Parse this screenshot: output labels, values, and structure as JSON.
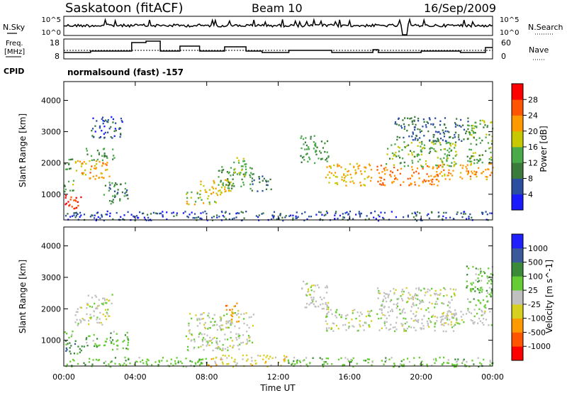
{
  "header": {
    "station": "Saskatoon (fitACF)",
    "beam": "Beam 10",
    "date": "16/Sep/2009"
  },
  "nsky_panel": {
    "left_label": "N.Sky",
    "right_label": "N.Search",
    "left_ticks": [
      "10^5",
      "10^0"
    ],
    "right_ticks": [
      "10^5",
      "10^0"
    ]
  },
  "freq_panel": {
    "left_label_line1": "Freq.",
    "left_label_line2": "[MHz]",
    "right_label": "Nave",
    "left_ticks": [
      "18",
      "8"
    ],
    "right_ticks": [
      "60",
      "0"
    ]
  },
  "cpid": {
    "label": "CPID",
    "value": "normalsound (fast) -157"
  },
  "colors": {
    "power_scale": [
      "#1a1aff",
      "#2a4fa0",
      "#3a7a3a",
      "#4aaa4a",
      "#c8c800",
      "#ff9900",
      "#ff5500",
      "#ff0000"
    ],
    "velocity_scale": [
      "#2020ff",
      "#3a5a9a",
      "#3a8a3a",
      "#66cc33",
      "#c0c0c0",
      "#d8d020",
      "#ff9900",
      "#ff5500",
      "#ff0000"
    ]
  },
  "chart_data": [
    {
      "type": "heatmap",
      "name": "power",
      "ylabel": "Slant Range [km]",
      "ylim": [
        180,
        4600
      ],
      "xlim": [
        0,
        24
      ],
      "x_ticks": [
        "00:00",
        "04:00",
        "08:00",
        "12:00",
        "16:00",
        "20:00",
        "00:00"
      ],
      "y_ticks": [
        1000,
        2000,
        3000,
        4000
      ],
      "colorbar_label": "Power [dB]",
      "colorbar_ticks": [
        "4",
        "8",
        "12",
        "16",
        "20",
        "24",
        "28"
      ],
      "colorbar_range": [
        0,
        32
      ],
      "regions": [
        {
          "t0": 0.0,
          "t1": 1.0,
          "r0": 550,
          "r1": 1050,
          "level": 28
        },
        {
          "t0": 0.0,
          "t1": 0.6,
          "r0": 1100,
          "r1": 1500,
          "level": 14
        },
        {
          "t0": 0.0,
          "t1": 0.5,
          "r0": 1600,
          "r1": 2150,
          "level": 12
        },
        {
          "t0": 0.6,
          "t1": 2.6,
          "r0": 1500,
          "r1": 2100,
          "level": 22
        },
        {
          "t0": 1.2,
          "t1": 2.8,
          "r0": 2100,
          "r1": 2500,
          "level": 12
        },
        {
          "t0": 2.2,
          "t1": 3.6,
          "r0": 700,
          "r1": 1400,
          "level": 10
        },
        {
          "t0": 1.5,
          "t1": 3.3,
          "r0": 2800,
          "r1": 3500,
          "level": 6
        },
        {
          "t0": 6.8,
          "t1": 8.6,
          "r0": 700,
          "r1": 1100,
          "level": 18
        },
        {
          "t0": 7.6,
          "t1": 9.4,
          "r0": 1000,
          "r1": 1500,
          "level": 20
        },
        {
          "t0": 8.6,
          "t1": 10.6,
          "r0": 1200,
          "r1": 1900,
          "level": 12
        },
        {
          "t0": 9.4,
          "t1": 10.2,
          "r0": 1600,
          "r1": 2200,
          "level": 16
        },
        {
          "t0": 10.5,
          "t1": 11.6,
          "r0": 1100,
          "r1": 1600,
          "level": 8
        },
        {
          "t0": 13.2,
          "t1": 14.8,
          "r0": 2000,
          "r1": 2900,
          "level": 12
        },
        {
          "t0": 14.6,
          "t1": 17.2,
          "r0": 1300,
          "r1": 2000,
          "level": 20
        },
        {
          "t0": 17.5,
          "t1": 21.0,
          "r0": 1300,
          "r1": 1950,
          "level": 24
        },
        {
          "t0": 18.0,
          "t1": 22.0,
          "r0": 1900,
          "r1": 2700,
          "level": 14
        },
        {
          "t0": 21.0,
          "t1": 24.0,
          "r0": 1500,
          "r1": 2000,
          "level": 22
        },
        {
          "t0": 22.5,
          "t1": 24.0,
          "r0": 2000,
          "r1": 3400,
          "level": 14
        },
        {
          "t0": 18.5,
          "t1": 22.6,
          "r0": 2700,
          "r1": 3500,
          "level": 8
        },
        {
          "t0": 0.0,
          "t1": 24.0,
          "r0": 180,
          "r1": 480,
          "level": 6
        }
      ]
    },
    {
      "type": "heatmap",
      "name": "velocity",
      "ylabel": "Slant Range [km]",
      "xlabel": "Time UT",
      "ylim": [
        180,
        4600
      ],
      "xlim": [
        0,
        24
      ],
      "x_ticks": [
        "00:00",
        "04:00",
        "08:00",
        "12:00",
        "16:00",
        "20:00",
        "00:00"
      ],
      "y_ticks": [
        1000,
        2000,
        3000,
        4000
      ],
      "colorbar_label": "Velocity [m s^-1]",
      "colorbar_ticks": [
        "1000",
        "500",
        "100",
        "25",
        "-25",
        "-100",
        "-500",
        "-1000"
      ],
      "regions": [
        {
          "t0": 0.0,
          "t1": 1.0,
          "r0": 550,
          "r1": 1050,
          "level": 2
        },
        {
          "t0": 0.0,
          "t1": 0.5,
          "r0": 1100,
          "r1": 1400,
          "level": 3
        },
        {
          "t0": 0.6,
          "t1": 2.6,
          "r0": 1500,
          "r1": 2100,
          "level": 4
        },
        {
          "t0": 1.2,
          "t1": 2.8,
          "r0": 2100,
          "r1": 2500,
          "level": 4
        },
        {
          "t0": 1.0,
          "t1": 2.0,
          "r0": 800,
          "r1": 1200,
          "level": 3
        },
        {
          "t0": 2.2,
          "t1": 3.6,
          "r0": 700,
          "r1": 1300,
          "level": 3
        },
        {
          "t0": 6.8,
          "t1": 10.6,
          "r0": 700,
          "r1": 1900,
          "level": 4
        },
        {
          "t0": 9.0,
          "t1": 9.8,
          "r0": 1600,
          "r1": 2200,
          "level": 6
        },
        {
          "t0": 8.0,
          "t1": 12.5,
          "r0": 180,
          "r1": 550,
          "level": 5
        },
        {
          "t0": 13.2,
          "t1": 14.8,
          "r0": 2000,
          "r1": 2900,
          "level": 4
        },
        {
          "t0": 14.6,
          "t1": 17.2,
          "r0": 1300,
          "r1": 2000,
          "level": 4
        },
        {
          "t0": 17.5,
          "t1": 22.0,
          "r0": 1300,
          "r1": 2700,
          "level": 4
        },
        {
          "t0": 21.0,
          "t1": 24.0,
          "r0": 1500,
          "r1": 2000,
          "level": 4
        },
        {
          "t0": 22.5,
          "t1": 24.0,
          "r0": 2000,
          "r1": 3400,
          "level": 3
        },
        {
          "t0": 0.0,
          "t1": 8.0,
          "r0": 180,
          "r1": 480,
          "level": 3
        },
        {
          "t0": 12.5,
          "t1": 24.0,
          "r0": 180,
          "r1": 480,
          "level": 3
        }
      ]
    }
  ]
}
